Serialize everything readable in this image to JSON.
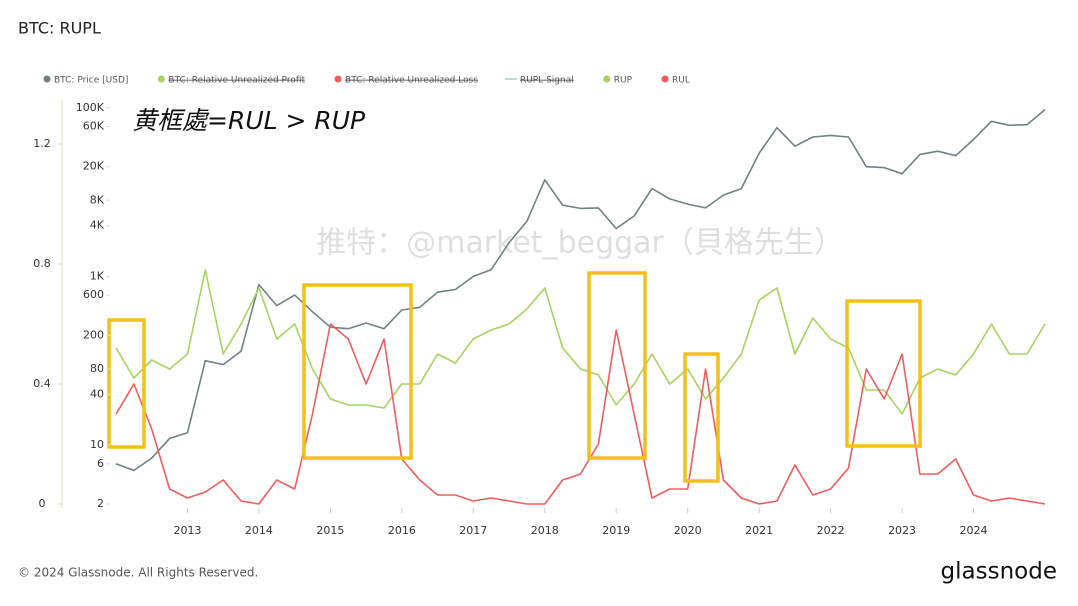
{
  "chart_data": {
    "type": "line",
    "title": "BTC: RUPL",
    "annotation": "黄框處=RUL > RUP",
    "watermark": "推特：@market_beggar（貝格先生）",
    "copyright": "© 2024 Glassnode. All Rights Reserved.",
    "brand": "glassnode",
    "x": [
      2012,
      2012.25,
      2012.5,
      2012.75,
      2013,
      2013.25,
      2013.5,
      2013.75,
      2014,
      2014.25,
      2014.5,
      2014.75,
      2015,
      2015.25,
      2015.5,
      2015.75,
      2016,
      2016.25,
      2016.5,
      2016.75,
      2017,
      2017.25,
      2017.5,
      2017.75,
      2018,
      2018.25,
      2018.5,
      2018.75,
      2019,
      2019.25,
      2019.5,
      2019.75,
      2020,
      2020.25,
      2020.5,
      2020.75,
      2021,
      2021.25,
      2021.5,
      2021.75,
      2022,
      2022.25,
      2022.5,
      2022.75,
      2023,
      2023.25,
      2023.5,
      2023.75,
      2024,
      2024.25,
      2024.5,
      2024.75,
      2025
    ],
    "xlim": [
      2012,
      2025
    ],
    "xticks": [
      2013,
      2014,
      2015,
      2016,
      2017,
      2018,
      2019,
      2020,
      2021,
      2022,
      2023,
      2024
    ],
    "ylim": [
      0,
      1.35
    ],
    "yticks": [
      0,
      0.4,
      0.8,
      1.2
    ],
    "y2lim": [
      2,
      127000
    ],
    "y2scale": "log",
    "y2ticks": [
      2,
      6,
      10,
      40,
      80,
      200,
      600,
      {
        "value": 1000,
        "label": "1K"
      },
      {
        "value": 4000,
        "label": "4K"
      },
      {
        "value": 8000,
        "label": "8K"
      },
      {
        "value": 20000,
        "label": "20K"
      },
      {
        "value": 60000,
        "label": "60K"
      },
      {
        "value": 100000,
        "label": "100K"
      }
    ],
    "legend_position": "top-left",
    "series": [
      {
        "name": "BTC: Price [USD]",
        "color": "#6f8183",
        "axis": "y2",
        "values": [
          6,
          5,
          7,
          12,
          14,
          100,
          90,
          130,
          800,
          450,
          600,
          380,
          250,
          240,
          280,
          240,
          400,
          430,
          650,
          700,
          1000,
          1200,
          2500,
          4500,
          14000,
          7000,
          6400,
          6500,
          3700,
          5200,
          11000,
          8300,
          7200,
          6500,
          9200,
          11000,
          29000,
          58000,
          35000,
          45000,
          47000,
          45000,
          20000,
          19500,
          16500,
          28000,
          30500,
          27000,
          42000,
          69000,
          62000,
          63000,
          95000
        ]
      },
      {
        "name": "BTC: Relative Unrealized Profit",
        "color": "#a6d35f",
        "hidden": true
      },
      {
        "name": "BTC: Relative Unrealized Loss",
        "color": "#ee5d5d",
        "hidden": true
      },
      {
        "name": "RUPL Signal",
        "color": "#b9ddd6",
        "hidden": true
      },
      {
        "name": "RUP",
        "color": "#a6d35f",
        "values": [
          0.52,
          0.42,
          0.48,
          0.45,
          0.5,
          0.78,
          0.5,
          0.6,
          0.72,
          0.55,
          0.6,
          0.45,
          0.35,
          0.33,
          0.33,
          0.32,
          0.4,
          0.4,
          0.5,
          0.47,
          0.55,
          0.58,
          0.6,
          0.65,
          0.72,
          0.52,
          0.45,
          0.43,
          0.33,
          0.4,
          0.5,
          0.4,
          0.45,
          0.35,
          0.42,
          0.5,
          0.68,
          0.72,
          0.5,
          0.62,
          0.55,
          0.52,
          0.38,
          0.38,
          0.3,
          0.42,
          0.45,
          0.43,
          0.5,
          0.6,
          0.5,
          0.5,
          0.6
        ]
      },
      {
        "name": "RUL",
        "color": "#ee5d5d",
        "values": [
          0.3,
          0.4,
          0.25,
          0.05,
          0.02,
          0.04,
          0.08,
          0.01,
          0,
          0.08,
          0.05,
          0.3,
          0.6,
          0.55,
          0.4,
          0.55,
          0.15,
          0.08,
          0.03,
          0.03,
          0.01,
          0.02,
          0.01,
          0,
          0,
          0.08,
          0.1,
          0.2,
          0.58,
          0.3,
          0.02,
          0.05,
          0.05,
          0.45,
          0.08,
          0.02,
          0,
          0.01,
          0.13,
          0.03,
          0.05,
          0.12,
          0.45,
          0.35,
          0.5,
          0.1,
          0.1,
          0.15,
          0.03,
          0.01,
          0.02,
          0.01,
          0
        ]
      }
    ]
  }
}
